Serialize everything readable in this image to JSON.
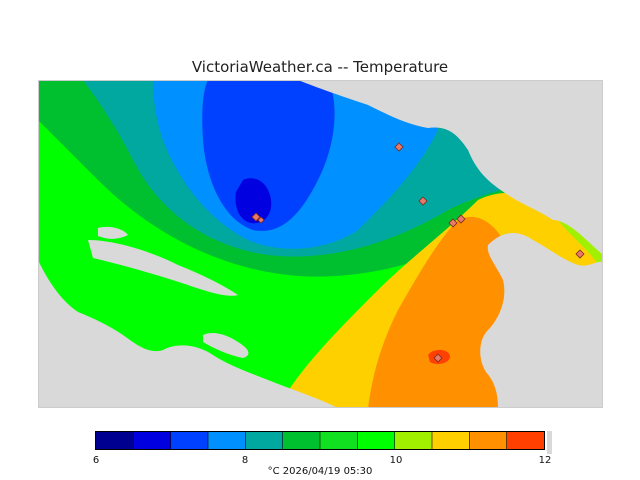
{
  "title": "VictoriaWeather.ca -- Temperature",
  "colors": {
    "land_mask": "#d9d9d9",
    "marker_fill": "#e87a6a",
    "bands": [
      "#000090",
      "#0000e0",
      "#0040ff",
      "#0090ff",
      "#00a8a0",
      "#00c030",
      "#10e020",
      "#00ff00",
      "#a0f000",
      "#ffd000",
      "#ff9000",
      "#ff4000",
      "#ff0000"
    ]
  },
  "colorbar": {
    "ticks": [
      {
        "value": "6"
      },
      {
        "value": "8"
      },
      {
        "value": "10"
      },
      {
        "value": "12"
      }
    ],
    "caption": "°C  2026/04/19 05:30"
  },
  "map_data": {
    "variable": "Temperature",
    "units": "°C",
    "range": [
      6,
      12
    ],
    "min_region": "north-central, around 6.5 °C",
    "max_region": "south-east, around 11 °C",
    "stations_shown": 8
  }
}
